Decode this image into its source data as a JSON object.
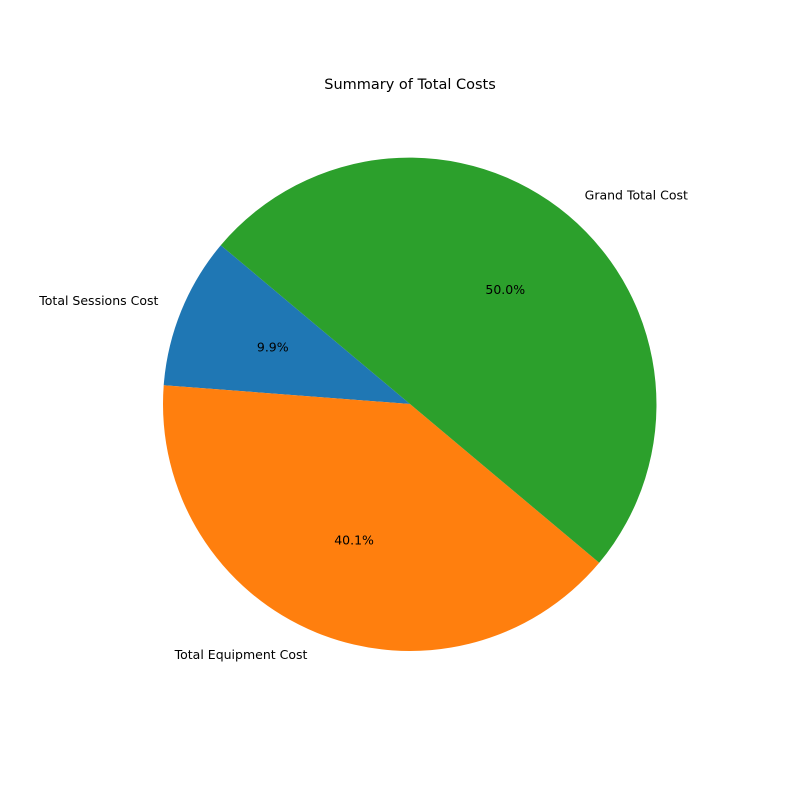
{
  "chart_data": {
    "type": "pie",
    "title": "Summary of Total Costs",
    "categories": [
      "Total Sessions Cost",
      "Total Equipment Cost",
      "Grand Total Cost"
    ],
    "values": [
      9.9,
      40.1,
      50.0
    ],
    "percent_labels": [
      "9.9%",
      "40.1%",
      "50.0%"
    ],
    "colors": [
      "#1f77b4",
      "#ff7f0e",
      "#2ca02c"
    ],
    "start_angle_deg": 140,
    "direction": "counterclockwise",
    "legend": "none"
  }
}
